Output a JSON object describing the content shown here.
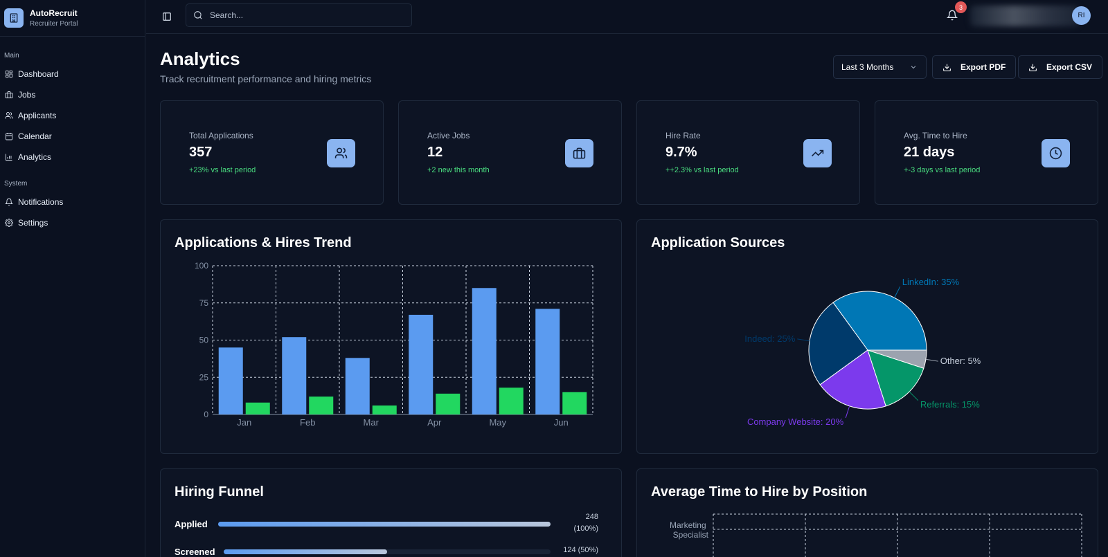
{
  "brand": {
    "name": "AutoRecruit",
    "subtitle": "Recruiter Portal"
  },
  "sidebar": {
    "sections": [
      {
        "label": "Main",
        "items": [
          {
            "label": "Dashboard",
            "icon": "dashboard-icon"
          },
          {
            "label": "Jobs",
            "icon": "briefcase-icon"
          },
          {
            "label": "Applicants",
            "icon": "users-icon"
          },
          {
            "label": "Calendar",
            "icon": "calendar-icon"
          },
          {
            "label": "Analytics",
            "icon": "bar-chart-icon"
          }
        ]
      },
      {
        "label": "System",
        "items": [
          {
            "label": "Notifications",
            "icon": "bell-icon"
          },
          {
            "label": "Settings",
            "icon": "gear-icon"
          }
        ]
      }
    ]
  },
  "topbar": {
    "search_placeholder": "Search...",
    "notification_count": "3",
    "avatar_initials": "RI"
  },
  "page": {
    "title": "Analytics",
    "subtitle": "Track recruitment performance and hiring metrics",
    "period": "Last 3 Months",
    "export_pdf": "Export PDF",
    "export_csv": "Export CSV"
  },
  "stats": [
    {
      "label": "Total Applications",
      "value": "357",
      "change": "+23% vs last period",
      "icon": "users-icon"
    },
    {
      "label": "Active Jobs",
      "value": "12",
      "change": "+2 new this month",
      "icon": "briefcase-icon"
    },
    {
      "label": "Hire Rate",
      "value": "9.7%",
      "change": "++2.3% vs last period",
      "icon": "trending-up-icon"
    },
    {
      "label": "Avg. Time to Hire",
      "value": "21 days",
      "change": "+-3 days vs last period",
      "icon": "clock-icon"
    }
  ],
  "panels": {
    "trend_title": "Applications & Hires Trend",
    "sources_title": "Application Sources",
    "funnel_title": "Hiring Funnel",
    "time_title": "Average Time to Hire by Position"
  },
  "funnel": [
    {
      "label": "Applied",
      "value": "248",
      "pct_text": "(100%)",
      "fraction": 1.0
    },
    {
      "label": "Screened",
      "value": "124 (50%)",
      "pct_text": "",
      "fraction": 0.5
    }
  ],
  "time_chart": {
    "categories": [
      "Marketing Specialist"
    ]
  },
  "colors": {
    "applications": "#5b9bf0",
    "hires": "#22d760",
    "linkedin": "#0077b5",
    "indeed": "#003a6b",
    "company_website": "#7c3aed",
    "referrals": "#059669",
    "other": "#9ca3af"
  },
  "chart_data": [
    {
      "type": "bar",
      "categories": [
        "Jan",
        "Feb",
        "Mar",
        "Apr",
        "May",
        "Jun"
      ],
      "series": [
        {
          "values": [
            45,
            52,
            38,
            67,
            85,
            71
          ]
        },
        {
          "values": [
            8,
            12,
            6,
            14,
            18,
            15
          ]
        }
      ],
      "ylim": [
        0,
        100
      ],
      "yticks": [
        0,
        25,
        50,
        75,
        100
      ],
      "grid": true
    },
    {
      "type": "pie",
      "slices": [
        {
          "label": "LinkedIn: 35%",
          "value": 35
        },
        {
          "label": "Indeed: 25%",
          "value": 25
        },
        {
          "label": "Company Website: 20%",
          "value": 20
        },
        {
          "label": "Referrals: 15%",
          "value": 15
        },
        {
          "label": "Other: 5%",
          "value": 5
        }
      ]
    }
  ]
}
